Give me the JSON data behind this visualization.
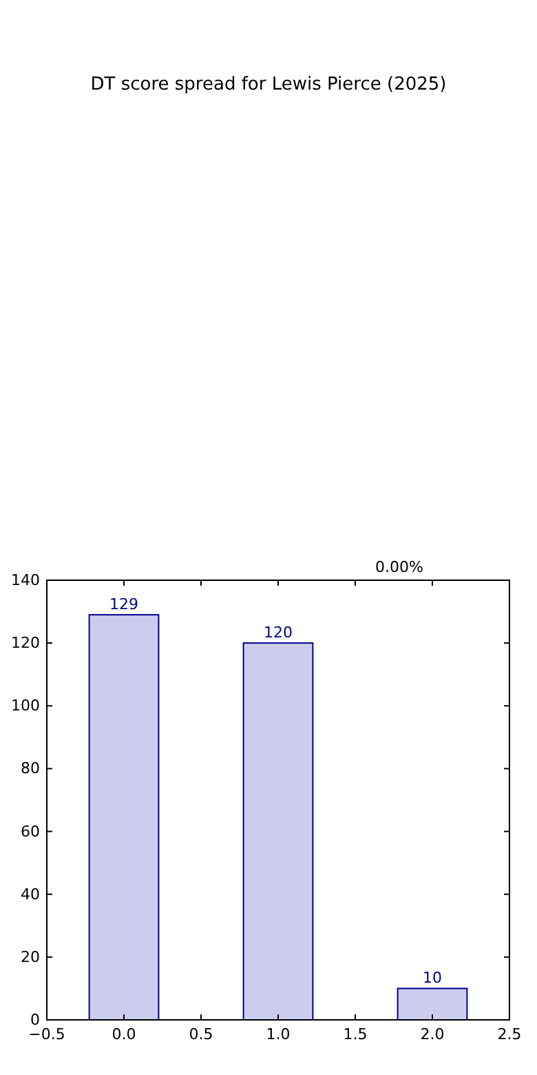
{
  "chart_data": {
    "type": "bar",
    "title": "DT score spread for Lewis Pierce (2025)",
    "x": [
      0,
      1,
      2
    ],
    "series": [
      {
        "color": "#ccccee",
        "values": [
          129,
          120,
          10
        ]
      }
    ],
    "xlim": [
      -0.5,
      2.5
    ],
    "xticks": [
      {
        "value": -0.5,
        "label": "−0.5"
      },
      {
        "value": 0,
        "label": "0.0"
      },
      {
        "value": 0.5,
        "label": "0.5"
      },
      {
        "value": 1,
        "label": "1.0"
      },
      {
        "value": 1.5,
        "label": "1.5"
      },
      {
        "value": 2,
        "label": "2.0"
      },
      {
        "value": 2.5,
        "label": "2.5"
      }
    ],
    "ylim": [
      0,
      140
    ],
    "yticks": [
      0,
      20,
      40,
      60,
      80,
      100,
      120,
      140
    ],
    "data_labels": true,
    "grid": false,
    "annotations": [
      "0.00%"
    ]
  }
}
